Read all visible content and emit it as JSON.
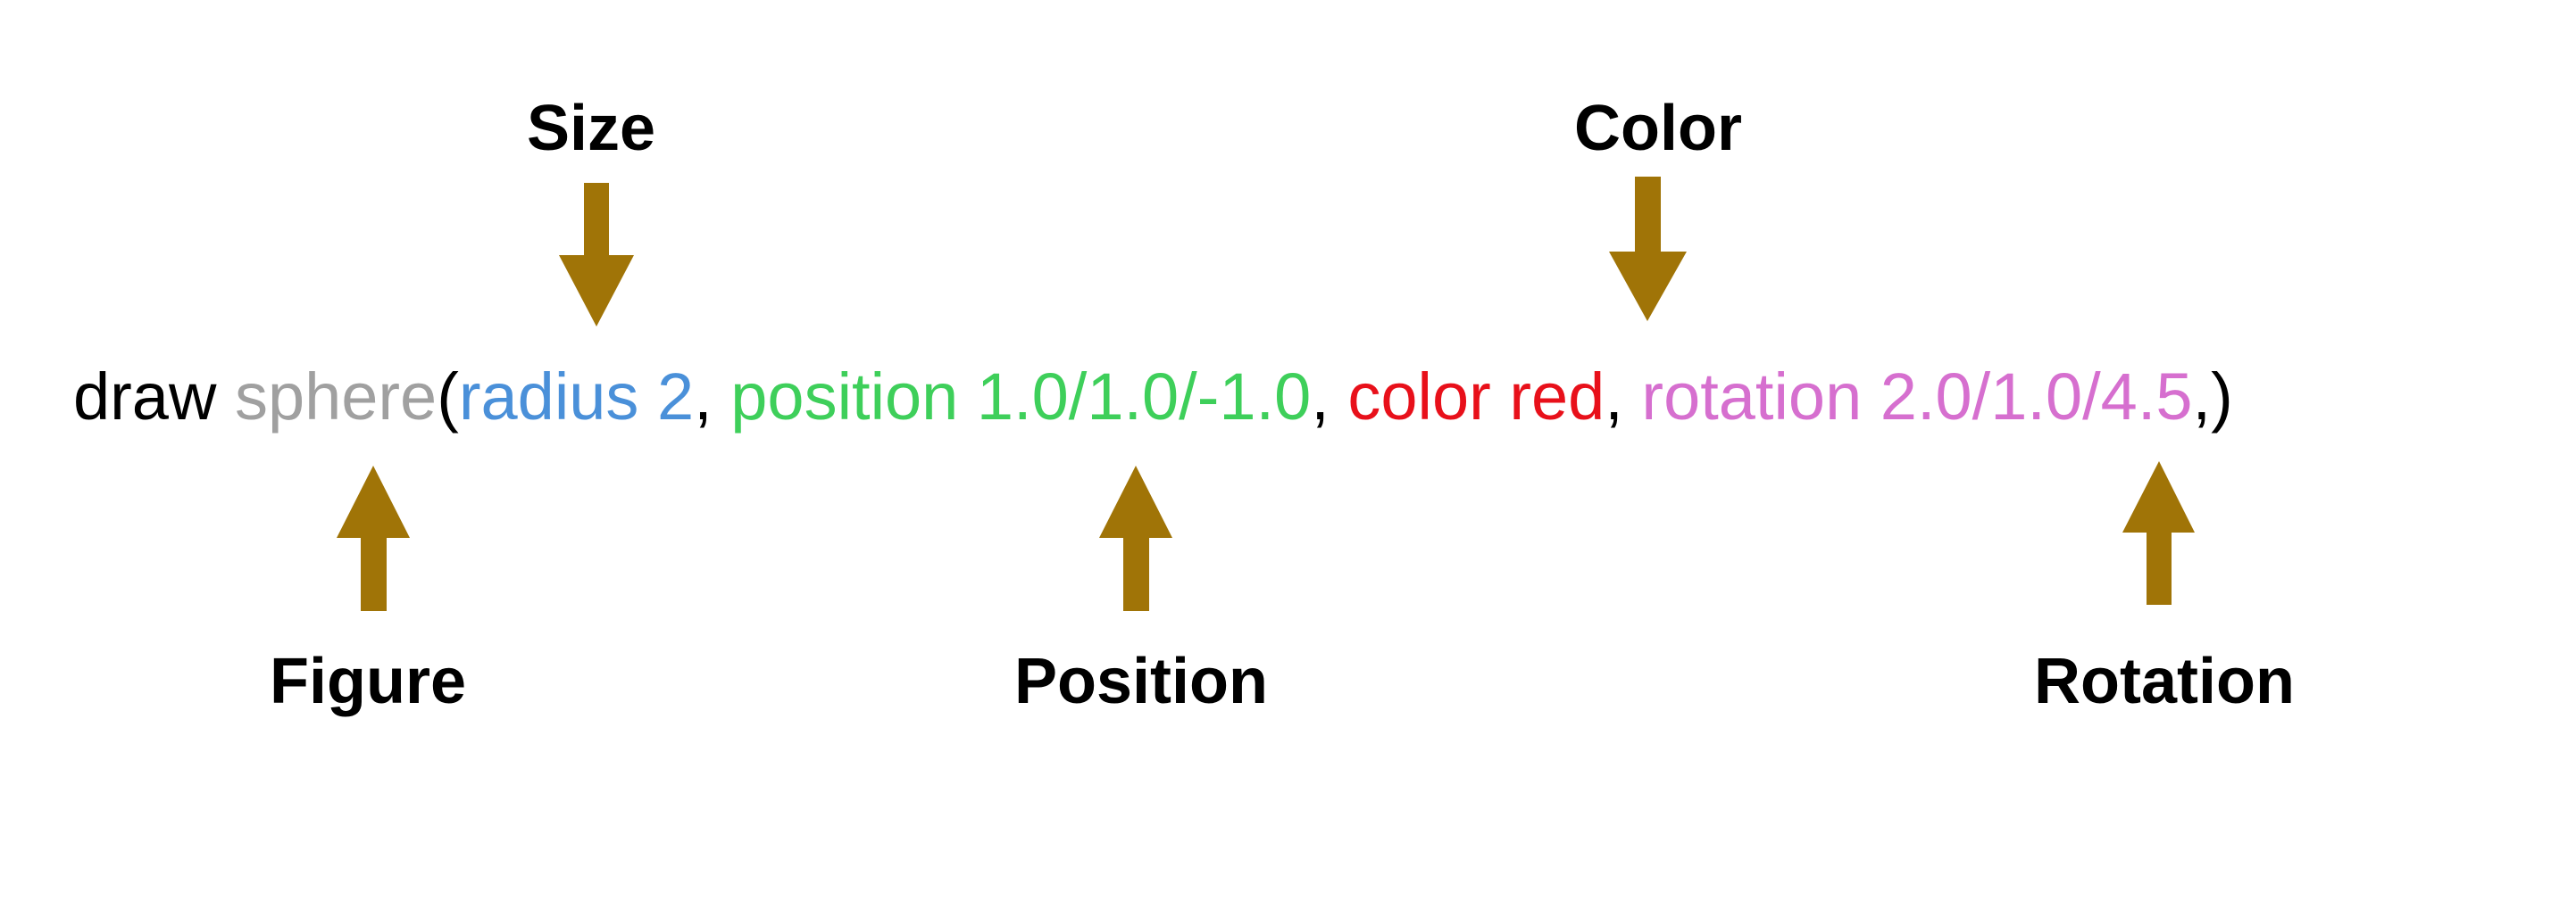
{
  "labels": {
    "size": "Size",
    "color": "Color",
    "figure": "Figure",
    "position": "Position",
    "rotation": "Rotation"
  },
  "code": {
    "draw": "draw ",
    "figure": "sphere",
    "open_paren": "(",
    "radius": "radius 2",
    "sep1": ", ",
    "position": "position 1.0/1.0/-1.0",
    "sep2": ", ",
    "color": "color red",
    "sep3": ", ",
    "rotation": "rotation 2.0/1.0/4.5",
    "close": ",)"
  },
  "colors": {
    "text": "#000000",
    "figure": "#a0a0a0",
    "radius": "#4a90d9",
    "position": "#3ecf5a",
    "color": "#e8101a",
    "rotation": "#d66fcf",
    "arrow": "#a07407"
  },
  "icons": {
    "arrow_down": "arrow-down-icon",
    "arrow_up": "arrow-up-icon"
  }
}
